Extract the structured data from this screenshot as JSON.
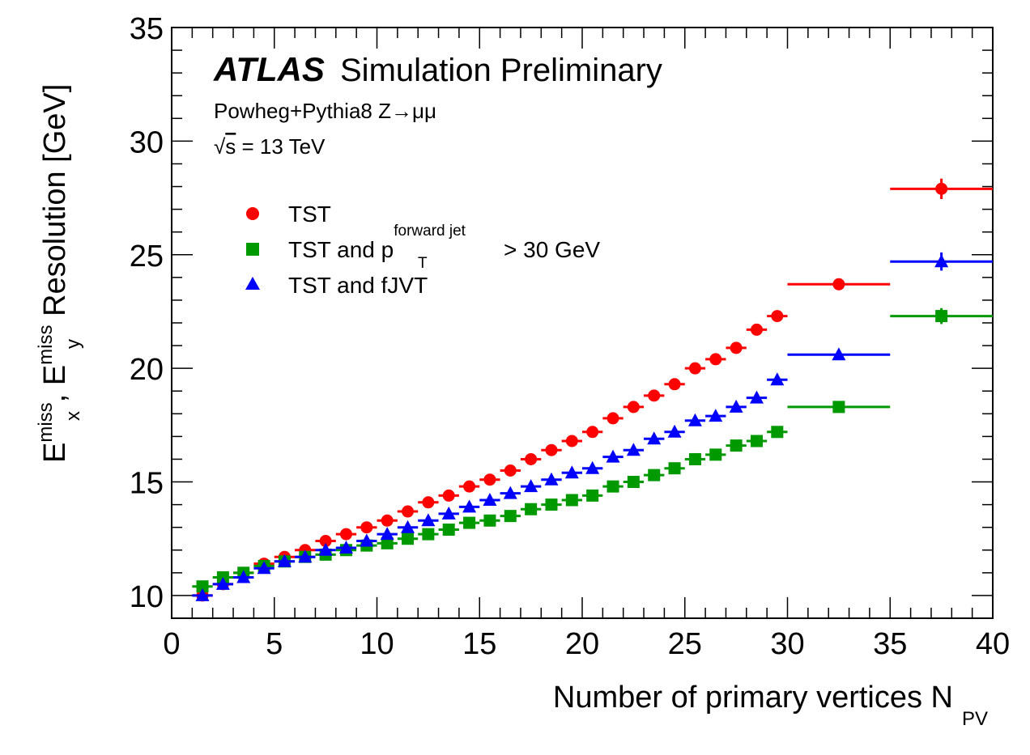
{
  "chart_data": {
    "type": "scatter",
    "experiment": "ATLAS",
    "status": "Simulation Preliminary",
    "process": "Powheg+Pythia8 Z→μμ",
    "energy": {
      "sqrt": "√",
      "s": "s",
      "rest": " = 13 TeV"
    },
    "xlabel": {
      "main": "Number of primary vertices N",
      "sub": "PV"
    },
    "ylabel": {
      "E1": "E",
      "x_sup": "miss",
      "x_sub": "x",
      "comma": ", ",
      "E2": "E",
      "y_sup": "miss",
      "y_sub": "y",
      "rest": " Resolution [GeV]"
    },
    "xlim": [
      0,
      40
    ],
    "ylim": [
      9,
      35
    ],
    "xticks": [
      0,
      5,
      10,
      15,
      20,
      25,
      30,
      35,
      40
    ],
    "xtick_labels": [
      "0",
      "5",
      "10",
      "15",
      "20",
      "25",
      "30",
      "35",
      "40"
    ],
    "yticks": [
      10,
      15,
      20,
      25,
      30,
      35
    ],
    "ytick_labels": [
      "10",
      "15",
      "20",
      "25",
      "30",
      "35"
    ],
    "grid": false,
    "legend_position": "upper-left",
    "bins": [
      [
        1,
        2
      ],
      [
        2,
        3
      ],
      [
        3,
        4
      ],
      [
        4,
        5
      ],
      [
        5,
        6
      ],
      [
        6,
        7
      ],
      [
        7,
        8
      ],
      [
        8,
        9
      ],
      [
        9,
        10
      ],
      [
        10,
        11
      ],
      [
        11,
        12
      ],
      [
        12,
        13
      ],
      [
        13,
        14
      ],
      [
        14,
        15
      ],
      [
        15,
        16
      ],
      [
        16,
        17
      ],
      [
        17,
        18
      ],
      [
        18,
        19
      ],
      [
        19,
        20
      ],
      [
        20,
        21
      ],
      [
        21,
        22
      ],
      [
        22,
        23
      ],
      [
        23,
        24
      ],
      [
        24,
        25
      ],
      [
        25,
        26
      ],
      [
        26,
        27
      ],
      [
        27,
        28
      ],
      [
        28,
        29
      ],
      [
        29,
        30
      ],
      [
        30,
        35
      ],
      [
        35,
        40
      ]
    ],
    "series": [
      {
        "name": "TST",
        "marker": "circle",
        "color": "#ff0000",
        "values": [
          10.0,
          10.5,
          11.0,
          11.4,
          11.7,
          12.0,
          12.4,
          12.7,
          13.0,
          13.3,
          13.7,
          14.1,
          14.4,
          14.8,
          15.1,
          15.5,
          16.0,
          16.4,
          16.8,
          17.2,
          17.8,
          18.3,
          18.8,
          19.3,
          20.0,
          20.4,
          20.9,
          21.7,
          22.3,
          23.7,
          27.9
        ],
        "errors": [
          0.05,
          0.05,
          0.05,
          0.05,
          0.05,
          0.05,
          0.05,
          0.05,
          0.05,
          0.05,
          0.05,
          0.05,
          0.05,
          0.05,
          0.05,
          0.05,
          0.05,
          0.05,
          0.05,
          0.05,
          0.06,
          0.06,
          0.06,
          0.07,
          0.07,
          0.08,
          0.1,
          0.1,
          0.12,
          0.12,
          0.45
        ]
      },
      {
        "name": "TST and p_T^forward jet > 30 GeV",
        "marker": "square",
        "color": "#009900",
        "values": [
          10.4,
          10.8,
          11.0,
          11.3,
          11.5,
          11.7,
          11.8,
          12.0,
          12.2,
          12.3,
          12.5,
          12.7,
          12.9,
          13.2,
          13.3,
          13.5,
          13.8,
          14.0,
          14.2,
          14.4,
          14.8,
          15.0,
          15.3,
          15.6,
          16.0,
          16.2,
          16.6,
          16.8,
          17.2,
          18.3,
          22.3
        ],
        "errors": [
          0.05,
          0.05,
          0.05,
          0.05,
          0.05,
          0.05,
          0.05,
          0.05,
          0.05,
          0.05,
          0.05,
          0.05,
          0.05,
          0.05,
          0.05,
          0.05,
          0.05,
          0.05,
          0.05,
          0.05,
          0.06,
          0.06,
          0.06,
          0.07,
          0.07,
          0.08,
          0.1,
          0.1,
          0.12,
          0.12,
          0.35
        ]
      },
      {
        "name": "TST and fJVT",
        "marker": "triangle",
        "color": "#0000ff",
        "values": [
          10.0,
          10.5,
          10.8,
          11.2,
          11.5,
          11.7,
          12.0,
          12.1,
          12.4,
          12.7,
          13.0,
          13.3,
          13.6,
          13.9,
          14.2,
          14.5,
          14.8,
          15.1,
          15.4,
          15.6,
          16.1,
          16.4,
          16.9,
          17.2,
          17.7,
          17.9,
          18.3,
          18.7,
          19.5,
          20.6,
          24.7
        ],
        "errors": [
          0.05,
          0.05,
          0.05,
          0.05,
          0.05,
          0.05,
          0.05,
          0.05,
          0.05,
          0.05,
          0.05,
          0.05,
          0.05,
          0.05,
          0.05,
          0.05,
          0.05,
          0.05,
          0.05,
          0.05,
          0.06,
          0.06,
          0.06,
          0.07,
          0.07,
          0.08,
          0.1,
          0.1,
          0.12,
          0.12,
          0.4
        ]
      }
    ],
    "legend": [
      {
        "marker": "circle",
        "color": "#ff0000",
        "text": "TST"
      },
      {
        "marker": "square",
        "color": "#009900",
        "text": "TST and p",
        "sup": "forward jet",
        "sub": "T",
        "suffix": " > 30 GeV"
      },
      {
        "marker": "triangle",
        "color": "#0000ff",
        "text": "TST and fJVT"
      }
    ]
  }
}
